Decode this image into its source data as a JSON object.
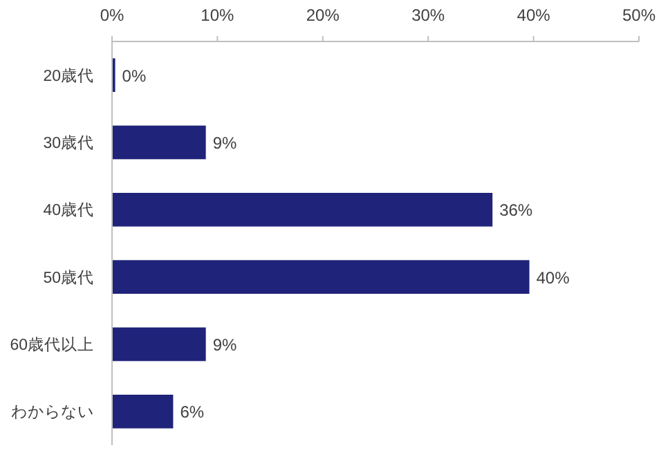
{
  "chart_data": {
    "type": "bar",
    "orientation": "horizontal",
    "categories": [
      "20歳代",
      "30歳代",
      "40歳代",
      "50歳代",
      "60歳代以上",
      "わからない"
    ],
    "values": [
      0.3,
      8.9,
      36.1,
      39.6,
      8.9,
      5.8
    ],
    "value_labels": [
      "0%",
      "9%",
      "36%",
      "40%",
      "9%",
      "6%"
    ],
    "color": "#1f237a",
    "xlim": [
      0,
      50
    ],
    "xticks": [
      {
        "value": 0,
        "label": "0%"
      },
      {
        "value": 10,
        "label": "10%"
      },
      {
        "value": 20,
        "label": "20%"
      },
      {
        "value": 30,
        "label": "30%"
      },
      {
        "value": 40,
        "label": "40%"
      },
      {
        "value": 50,
        "label": "50%"
      }
    ],
    "data_labels": false
  }
}
